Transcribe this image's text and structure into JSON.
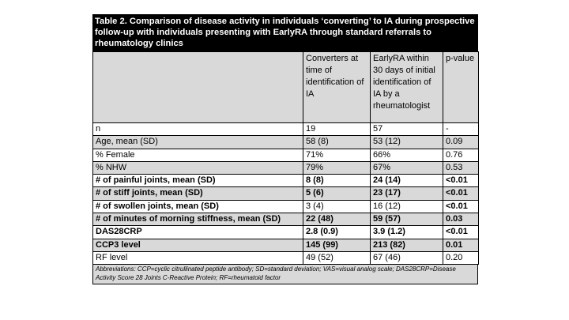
{
  "table": {
    "title": "Table 2. Comparison of disease activity in individuals ‘converting’ to IA during prospective follow-up with individuals presenting with EarlyRA through standard referrals to rheumatology clinics",
    "header": [
      "",
      "Converters at time of identification of IA",
      "EarlyRA within 30 days of initial identification of IA by a rheumatologist",
      "p-value"
    ],
    "rows": [
      [
        "n",
        "19",
        "57",
        "-"
      ],
      [
        "Age, mean (SD)",
        "58 (8)",
        "53 (12)",
        "0.09"
      ],
      [
        "% Female",
        "71%",
        "66%",
        "0.76"
      ],
      [
        "% NHW",
        "79%",
        "67%",
        "0.53"
      ],
      [
        "# of painful joints, mean (SD)",
        "8 (8)",
        "24 (14)",
        "<0.01"
      ],
      [
        "# of stiff joints, mean (SD)",
        "5 (6)",
        "23 (17)",
        "<0.01"
      ],
      [
        "# of swollen joints, mean (SD)",
        "3 (4)",
        "16 (12)",
        "<0.01"
      ],
      [
        "# of minutes of morning stiffness, mean (SD)",
        "22 (48)",
        "59 (57)",
        "0.03"
      ],
      [
        "DAS28CRP",
        "2.8 (0.9)",
        "3.9 (1.2)",
        "<0.01"
      ],
      [
        "CCP3 level",
        "145 (99)",
        "213 (82)",
        "0.01"
      ],
      [
        "RF level",
        "49 (52)",
        "67 (46)",
        "0.20"
      ]
    ],
    "footnote": "Abbreviations: CCP=cyclic citrullinated peptide antibody; SD=standard deviation; VAS=visual analog scale; DAS28CRP=Disease Activity Score 28 Joints C-Reactive Protein; RF=rheumatoid factor"
  }
}
